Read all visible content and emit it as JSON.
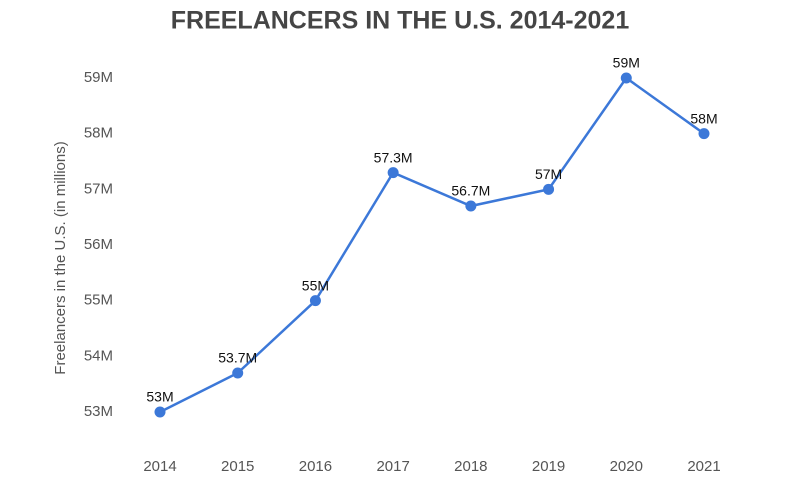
{
  "chart_data": {
    "type": "line",
    "title": "FREELANCERS IN THE U.S. 2014-2021",
    "y_label": "Freelancers in the U.S. (in millions)",
    "categories": [
      "2014",
      "2015",
      "2016",
      "2017",
      "2018",
      "2019",
      "2020",
      "2021"
    ],
    "values": [
      53,
      53.7,
      55,
      57.3,
      56.7,
      57,
      59,
      58
    ],
    "value_labels": [
      "53M",
      "53.7M",
      "55M",
      "57.3M",
      "56.7M",
      "57M",
      "59M",
      "58M"
    ],
    "color": "#3c78d8",
    "ylim": [
      52.5,
      59.3
    ],
    "yticks": [
      {
        "value": 53,
        "label": "53M"
      },
      {
        "value": 54,
        "label": "54M"
      },
      {
        "value": 55,
        "label": "55M"
      },
      {
        "value": 56,
        "label": "56M"
      },
      {
        "value": 57,
        "label": "57M"
      },
      {
        "value": 58,
        "label": "58M"
      },
      {
        "value": 59,
        "label": "59M"
      }
    ],
    "grid": false
  }
}
